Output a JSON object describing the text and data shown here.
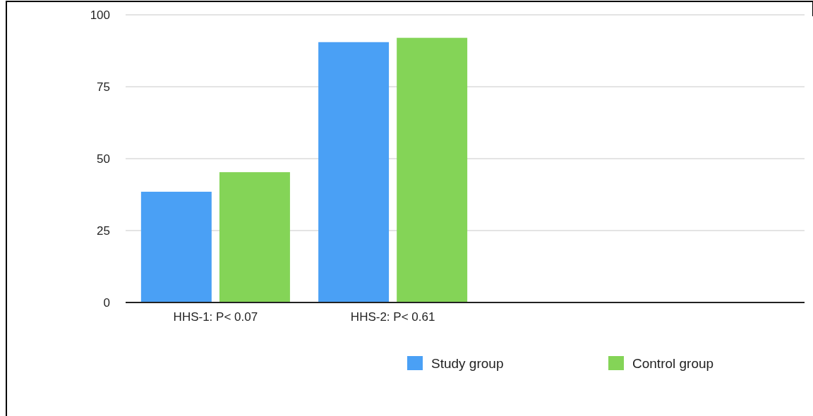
{
  "chart_data": {
    "type": "bar",
    "categories": [
      "HHS-1: P< 0.07",
      "HHS-2: P< 0.61"
    ],
    "series": [
      {
        "name": "Study group",
        "color": "#4aa0f5",
        "values": [
          38.5,
          90.5
        ]
      },
      {
        "name": "Control group",
        "color": "#84d457",
        "values": [
          45.3,
          92
        ]
      }
    ],
    "ylim": [
      0,
      100
    ],
    "yticks": [
      0,
      25,
      50,
      75,
      100
    ],
    "grid": "y",
    "legend": "bottom"
  }
}
